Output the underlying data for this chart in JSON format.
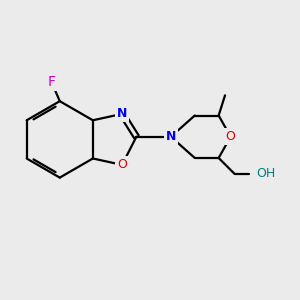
{
  "background_color": "#ebebeb",
  "bond_color": "#000000",
  "bond_width": 1.6,
  "atom_colors": {
    "F": "#cc00cc",
    "N": "#0000ee",
    "O_ring": "#dd0000",
    "O_benz": "#dd0000",
    "OH": "#008080",
    "C": "#000000"
  },
  "figsize": [
    3.0,
    3.0
  ],
  "dpi": 100
}
